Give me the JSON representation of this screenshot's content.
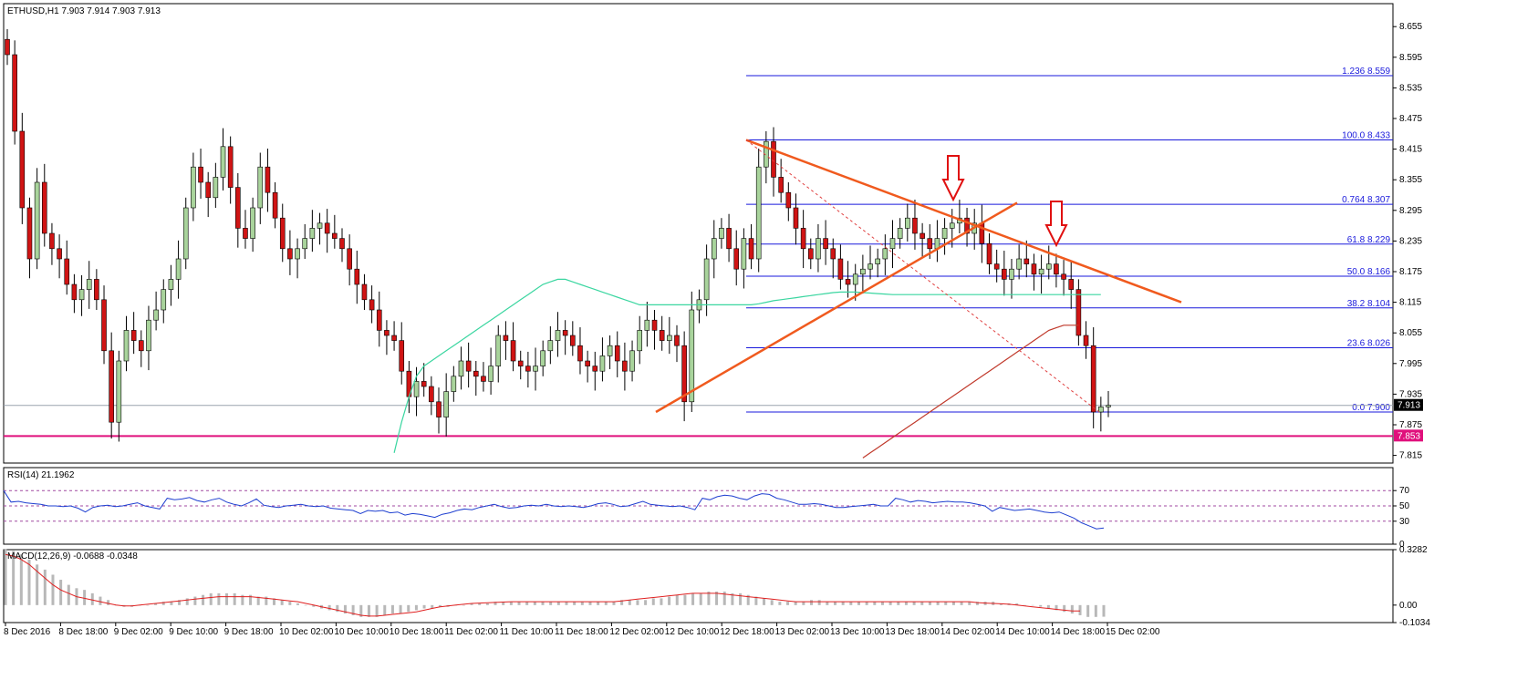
{
  "chart_data": [
    {
      "type": "candlestick",
      "symbol_header": "ETHUSD,H1  7.903 7.914 7.903 7.913",
      "last_price_label": "7.913",
      "support_label": "7.853",
      "support_level": 7.853,
      "last_price": 7.913,
      "price_axis_ticks": [
        "8.655",
        "8.595",
        "8.535",
        "8.475",
        "8.415",
        "8.355",
        "8.295",
        "8.235",
        "8.175",
        "8.115",
        "8.055",
        "7.995",
        "7.935",
        "7.875",
        "7.815"
      ],
      "ylim": [
        7.8,
        8.7
      ],
      "fibonacci_levels": [
        {
          "label": "1.236  8.559",
          "value": 8.559
        },
        {
          "label": "100.0  8.433",
          "value": 8.433
        },
        {
          "label": "0.764  8.307",
          "value": 8.307
        },
        {
          "label": "61.8  8.229",
          "value": 8.229
        },
        {
          "label": "50.0  8.166",
          "value": 8.166
        },
        {
          "label": "38.2  8.104",
          "value": 8.104
        },
        {
          "label": "23.6  8.026",
          "value": 8.026
        },
        {
          "label": "0.0  7.900",
          "value": 7.9
        }
      ],
      "time_labels": [
        "8 Dec 2016",
        "8 Dec 18:00",
        "9 Dec 02:00",
        "9 Dec 10:00",
        "9 Dec 18:00",
        "10 Dec 02:00",
        "10 Dec 10:00",
        "10 Dec 18:00",
        "11 Dec 02:00",
        "11 Dec 10:00",
        "11 Dec 18:00",
        "12 Dec 02:00",
        "12 Dec 10:00",
        "12 Dec 18:00",
        "13 Dec 02:00",
        "13 Dec 10:00",
        "13 Dec 18:00",
        "14 Dec 02:00",
        "14 Dec 10:00",
        "14 Dec 18:00",
        "15 Dec 02:00"
      ],
      "closes": [
        8.6,
        8.45,
        8.3,
        8.2,
        8.35,
        8.25,
        8.22,
        8.2,
        8.15,
        8.12,
        8.14,
        8.16,
        8.12,
        8.02,
        7.88,
        8.0,
        8.06,
        8.04,
        8.02,
        8.08,
        8.1,
        8.14,
        8.16,
        8.2,
        8.3,
        8.38,
        8.35,
        8.32,
        8.36,
        8.42,
        8.34,
        8.26,
        8.24,
        8.3,
        8.38,
        8.33,
        8.28,
        8.22,
        8.2,
        8.22,
        8.24,
        8.26,
        8.27,
        8.25,
        8.24,
        8.22,
        8.18,
        8.15,
        8.12,
        8.1,
        8.06,
        8.05,
        8.04,
        7.98,
        7.93,
        7.96,
        7.95,
        7.92,
        7.89,
        7.94,
        7.97,
        8.0,
        7.98,
        7.97,
        7.96,
        7.99,
        8.05,
        8.04,
        8.0,
        7.99,
        7.98,
        7.99,
        8.02,
        8.04,
        8.06,
        8.05,
        8.03,
        8.0,
        7.99,
        7.98,
        8.01,
        8.03,
        8.0,
        7.98,
        8.02,
        8.06,
        8.08,
        8.06,
        8.04,
        8.05,
        8.03,
        7.92,
        8.1,
        8.12,
        8.2,
        8.24,
        8.26,
        8.22,
        8.18,
        8.24,
        8.2,
        8.38,
        8.43,
        8.36,
        8.33,
        8.3,
        8.26,
        8.22,
        8.2,
        8.24,
        8.22,
        8.2,
        8.16,
        8.15,
        8.17,
        8.18,
        8.19,
        8.2,
        8.22,
        8.24,
        8.26,
        8.28,
        8.25,
        8.24,
        8.22,
        8.24,
        8.26,
        8.27,
        8.28,
        8.25,
        8.27,
        8.23,
        8.19,
        8.18,
        8.16,
        8.18,
        8.2,
        8.19,
        8.17,
        8.18,
        8.19,
        8.17,
        8.16,
        8.14,
        8.05,
        8.03,
        7.9,
        7.91,
        7.913
      ],
      "moving_average_green": [
        null,
        null,
        null,
        null,
        null,
        null,
        null,
        null,
        null,
        null,
        null,
        null,
        null,
        null,
        null,
        null,
        null,
        null,
        null,
        null,
        null,
        null,
        null,
        null,
        null,
        null,
        null,
        null,
        null,
        null,
        null,
        null,
        null,
        null,
        null,
        null,
        null,
        null,
        null,
        null,
        null,
        null,
        null,
        null,
        null,
        null,
        null,
        null,
        null,
        null,
        null,
        null,
        7.82,
        7.88,
        7.93,
        7.97,
        7.99,
        8.0,
        8.01,
        8.02,
        8.03,
        8.04,
        8.05,
        8.06,
        8.07,
        8.08,
        8.09,
        8.1,
        8.11,
        8.12,
        8.13,
        8.14,
        8.15,
        8.155,
        8.16,
        8.16,
        8.155,
        8.15,
        8.145,
        8.14,
        8.135,
        8.13,
        8.125,
        8.12,
        8.115,
        8.11,
        8.11,
        8.11,
        8.11,
        8.11,
        8.11,
        8.11,
        8.11,
        8.11,
        8.11,
        8.11,
        8.11,
        8.11,
        8.11,
        8.11,
        8.11,
        8.112,
        8.115,
        8.118,
        8.12,
        8.122,
        8.124,
        8.126,
        8.128,
        8.13,
        8.132,
        8.134,
        8.135,
        8.135,
        8.135,
        8.134,
        8.133,
        8.132,
        8.131,
        8.13,
        8.13,
        8.13,
        8.13,
        8.13,
        8.13,
        8.13,
        8.13,
        8.13,
        8.13,
        8.13,
        8.13,
        8.13,
        8.13,
        8.13,
        8.13,
        8.13,
        8.13,
        8.13,
        8.13,
        8.13,
        8.13,
        8.13,
        8.13,
        8.13,
        8.13,
        8.13,
        8.13,
        8.13
      ],
      "moving_average_red": [
        null,
        null,
        null,
        null,
        null,
        null,
        null,
        null,
        null,
        null,
        null,
        null,
        null,
        null,
        null,
        null,
        null,
        null,
        null,
        null,
        null,
        null,
        null,
        null,
        null,
        null,
        null,
        null,
        null,
        null,
        null,
        null,
        null,
        null,
        null,
        null,
        null,
        null,
        null,
        null,
        null,
        null,
        null,
        null,
        null,
        null,
        null,
        null,
        null,
        null,
        null,
        null,
        null,
        null,
        null,
        null,
        null,
        null,
        null,
        null,
        null,
        null,
        null,
        null,
        null,
        null,
        null,
        null,
        null,
        null,
        null,
        null,
        null,
        null,
        null,
        null,
        null,
        null,
        null,
        null,
        null,
        null,
        null,
        null,
        null,
        null,
        null,
        null,
        null,
        null,
        null,
        null,
        null,
        null,
        null,
        null,
        null,
        null,
        null,
        null,
        null,
        null,
        null,
        null,
        null,
        null,
        null,
        null,
        null,
        null,
        null,
        null,
        null,
        null,
        null,
        7.81,
        7.82,
        7.83,
        7.84,
        7.85,
        7.86,
        7.87,
        7.88,
        7.89,
        7.9,
        7.91,
        7.92,
        7.93,
        7.94,
        7.95,
        7.96,
        7.97,
        7.98,
        7.99,
        8.0,
        8.01,
        8.02,
        8.03,
        8.04,
        8.05,
        8.06,
        8.065,
        8.07,
        8.07,
        8.07
      ]
    },
    {
      "type": "line",
      "title": "RSI(14) 21.1962",
      "ylim": [
        0,
        100
      ],
      "axis_ticks": [
        "70",
        "50",
        "30",
        "0"
      ],
      "levels": [
        70,
        50,
        30
      ],
      "values": [
        70,
        55,
        56,
        54,
        53,
        52,
        50,
        50,
        49,
        50,
        47,
        42,
        48,
        50,
        51,
        49,
        50,
        52,
        54,
        50,
        48,
        46,
        60,
        58,
        59,
        61,
        57,
        55,
        58,
        60,
        55,
        52,
        50,
        54,
        59,
        51,
        49,
        48,
        50,
        51,
        52,
        50,
        49,
        50,
        47,
        46,
        45,
        44,
        40,
        44,
        43,
        44,
        41,
        42,
        38,
        40,
        39,
        37,
        35,
        39,
        41,
        44,
        46,
        45,
        48,
        50,
        52,
        49,
        47,
        48,
        50,
        51,
        50,
        52,
        50,
        49,
        50,
        49,
        48,
        50,
        53,
        54,
        52,
        49,
        50,
        53,
        56,
        52,
        51,
        50,
        49,
        50,
        48,
        45,
        60,
        58,
        62,
        64,
        63,
        60,
        58,
        63,
        66,
        65,
        60,
        58,
        55,
        52,
        52,
        53,
        52,
        50,
        48,
        48,
        49,
        50,
        51,
        52,
        50,
        50,
        60,
        58,
        55,
        57,
        56,
        54,
        55,
        56,
        55,
        55,
        54,
        52,
        50,
        43,
        48,
        46,
        44,
        45,
        46,
        44,
        42,
        41,
        42,
        38,
        34,
        28,
        24,
        20,
        21.1962
      ]
    },
    {
      "type": "bar",
      "title": "MACD(12,26,9) -0.0688 -0.0348",
      "ylim": [
        -0.1034,
        0.3282
      ],
      "axis_ticks": [
        "0.3282",
        "0.00",
        "-0.1034"
      ],
      "histogram": [
        0.33,
        0.32,
        0.3,
        0.27,
        0.24,
        0.21,
        0.18,
        0.15,
        0.12,
        0.1,
        0.09,
        0.07,
        0.05,
        0.03,
        0.0,
        -0.01,
        -0.01,
        0.0,
        0.0,
        0.01,
        0.02,
        0.02,
        0.03,
        0.04,
        0.05,
        0.06,
        0.07,
        0.07,
        0.07,
        0.07,
        0.06,
        0.06,
        0.05,
        0.05,
        0.04,
        0.03,
        0.02,
        0.01,
        0.0,
        -0.01,
        -0.02,
        -0.03,
        -0.04,
        -0.05,
        -0.06,
        -0.07,
        -0.07,
        -0.07,
        -0.06,
        -0.05,
        -0.05,
        -0.04,
        -0.03,
        -0.02,
        -0.02,
        -0.01,
        -0.01,
        0.0,
        0.0,
        0.01,
        0.01,
        0.01,
        0.02,
        0.02,
        0.02,
        0.02,
        0.02,
        0.02,
        0.02,
        0.02,
        0.02,
        0.02,
        0.02,
        0.02,
        0.02,
        0.02,
        0.02,
        0.02,
        0.03,
        0.03,
        0.03,
        0.03,
        0.04,
        0.04,
        0.05,
        0.06,
        0.06,
        0.07,
        0.07,
        0.08,
        0.08,
        0.08,
        0.07,
        0.07,
        0.06,
        0.05,
        0.04,
        0.03,
        0.02,
        0.02,
        0.02,
        0.02,
        0.03,
        0.03,
        0.02,
        0.02,
        0.02,
        0.02,
        0.02,
        0.02,
        0.02,
        0.02,
        0.02,
        0.02,
        0.02,
        0.02,
        0.02,
        0.02,
        0.02,
        0.02,
        0.02,
        0.02,
        0.02,
        0.02,
        0.02,
        0.02,
        0.01,
        0.01,
        0.01,
        0.0,
        0.0,
        -0.01,
        -0.02,
        -0.03,
        -0.04,
        -0.05,
        -0.06,
        -0.07,
        -0.07,
        -0.0688
      ],
      "signal": [
        0.3,
        0.29,
        0.27,
        0.24,
        0.2,
        0.16,
        0.12,
        0.09,
        0.07,
        0.05,
        0.04,
        0.03,
        0.02,
        0.01,
        0.0,
        -0.005,
        -0.005,
        0.0,
        0.005,
        0.01,
        0.015,
        0.02,
        0.025,
        0.03,
        0.035,
        0.04,
        0.045,
        0.05,
        0.05,
        0.05,
        0.05,
        0.05,
        0.045,
        0.04,
        0.035,
        0.03,
        0.025,
        0.02,
        0.01,
        0.0,
        -0.01,
        -0.02,
        -0.03,
        -0.04,
        -0.05,
        -0.06,
        -0.065,
        -0.065,
        -0.06,
        -0.055,
        -0.05,
        -0.045,
        -0.04,
        -0.03,
        -0.02,
        -0.01,
        -0.005,
        0.0,
        0.005,
        0.01,
        0.012,
        0.014,
        0.016,
        0.018,
        0.02,
        0.02,
        0.02,
        0.02,
        0.02,
        0.02,
        0.02,
        0.02,
        0.02,
        0.02,
        0.02,
        0.02,
        0.02,
        0.02,
        0.025,
        0.03,
        0.035,
        0.04,
        0.045,
        0.05,
        0.055,
        0.06,
        0.065,
        0.07,
        0.07,
        0.07,
        0.07,
        0.065,
        0.06,
        0.055,
        0.05,
        0.045,
        0.04,
        0.035,
        0.03,
        0.025,
        0.02,
        0.02,
        0.02,
        0.02,
        0.02,
        0.02,
        0.02,
        0.02,
        0.02,
        0.02,
        0.02,
        0.02,
        0.02,
        0.02,
        0.02,
        0.02,
        0.02,
        0.02,
        0.02,
        0.02,
        0.02,
        0.02,
        0.02,
        0.015,
        0.012,
        0.01,
        0.008,
        0.005,
        0.0,
        -0.005,
        -0.01,
        -0.015,
        -0.02,
        -0.025,
        -0.03,
        -0.035,
        -0.0348
      ]
    }
  ]
}
